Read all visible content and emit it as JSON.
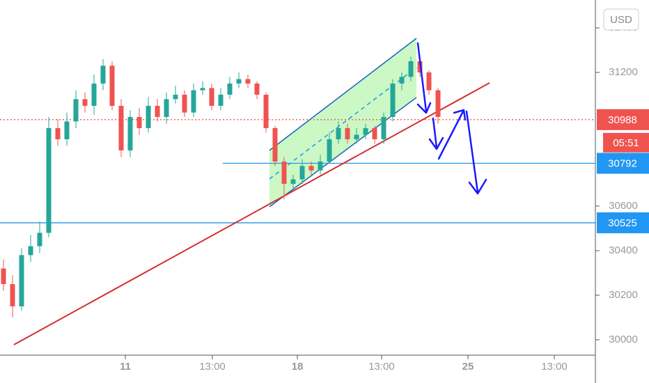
{
  "chart_data": {
    "type": "candlestick",
    "currency": "USD",
    "x": [
      0.5,
      1.8,
      3.1,
      4.4,
      5.7,
      7.0,
      8.3,
      9.6,
      10.9,
      12.2,
      13.5,
      14.8,
      16.1,
      17.4,
      18.7,
      20.0,
      21.3,
      22.6,
      23.9,
      25.2,
      26.5,
      27.8,
      29.1,
      30.4,
      31.7,
      33.0,
      34.3,
      35.6,
      36.9,
      38.2,
      39.5,
      40.8,
      42.1,
      43.4,
      44.7,
      46.0,
      47.3,
      48.6,
      49.9,
      51.2,
      52.5,
      53.8,
      55.1,
      56.4,
      57.7,
      59.0,
      60.3,
      61.6,
      62.9
    ],
    "open": [
      30320,
      30250,
      30150,
      30380,
      30420,
      30480,
      30950,
      30900,
      30980,
      31080,
      31050,
      31150,
      31230,
      31050,
      30850,
      31000,
      30950,
      31050,
      31000,
      31080,
      31100,
      31020,
      31120,
      31130,
      31050,
      31100,
      31150,
      31170,
      31150,
      31100,
      30950,
      30800,
      30700,
      30720,
      30780,
      30760,
      30800,
      30900,
      30950,
      30900,
      30920,
      30950,
      30900,
      31000,
      31150,
      31180,
      31250,
      31200,
      31120
    ],
    "high": [
      30360,
      30290,
      30410,
      30470,
      30530,
      31000,
      30990,
      31020,
      31120,
      31110,
      31190,
      31260,
      31250,
      31080,
      31030,
      31040,
      31090,
      31080,
      31110,
      31140,
      31120,
      31150,
      31160,
      31150,
      31130,
      31180,
      31200,
      31190,
      31160,
      31110,
      30960,
      30820,
      30740,
      30810,
      30800,
      30830,
      30930,
      30980,
      30970,
      30950,
      30970,
      30960,
      31020,
      31170,
      31200,
      31270,
      31260,
      31210,
      31130
    ],
    "low": [
      30220,
      30100,
      30130,
      30350,
      30390,
      30460,
      30870,
      30870,
      30950,
      31020,
      31010,
      31120,
      31030,
      30820,
      30820,
      30920,
      30930,
      30980,
      30970,
      31060,
      31000,
      31000,
      31100,
      31030,
      31030,
      31080,
      31130,
      31130,
      31080,
      30930,
      30780,
      30630,
      30680,
      30700,
      30740,
      30740,
      30790,
      30880,
      30880,
      30880,
      30900,
      30880,
      30880,
      30980,
      31120,
      31160,
      31180,
      31100,
      30970
    ],
    "close": [
      30250,
      30150,
      30380,
      30420,
      30480,
      30950,
      30900,
      30980,
      31080,
      31050,
      31150,
      31230,
      31050,
      30850,
      31000,
      30950,
      31050,
      31000,
      31080,
      31100,
      31020,
      31120,
      31130,
      31050,
      31100,
      31150,
      31170,
      31150,
      31100,
      30950,
      30800,
      30700,
      30720,
      30780,
      30760,
      30800,
      30900,
      30950,
      30900,
      30920,
      30950,
      30900,
      31000,
      31150,
      31180,
      31250,
      31200,
      31120,
      31000
    ],
    "up_color": "#26a69a",
    "down_color": "#ef5350",
    "xlim": [
      0,
      85.5
    ],
    "ylim": [
      29931,
      31525
    ],
    "xticks": [
      {
        "value": 18,
        "label": "11"
      },
      {
        "value": 30.5,
        "label": "13:00"
      },
      {
        "value": 42.7,
        "label": "18"
      },
      {
        "value": 54.8,
        "label": "13:00"
      },
      {
        "value": 67.2,
        "label": "25"
      },
      {
        "value": 79.6,
        "label": "13:00"
      }
    ],
    "yticks": [
      30000,
      30200,
      30400,
      30600,
      31200,
      31400
    ],
    "price_levels": [
      {
        "value": 30988,
        "color": "#ef5350",
        "style": "dotted",
        "countdown": "05:51"
      },
      {
        "value": 30792,
        "color": "#2196f3",
        "style": "solid",
        "x_start": 32
      },
      {
        "value": 30525,
        "color": "#2196f3",
        "style": "solid"
      }
    ],
    "trendline": {
      "x": [
        2,
        70.3
      ],
      "y": [
        29978,
        31153
      ],
      "color": "#d32f2f"
    }
  }
}
